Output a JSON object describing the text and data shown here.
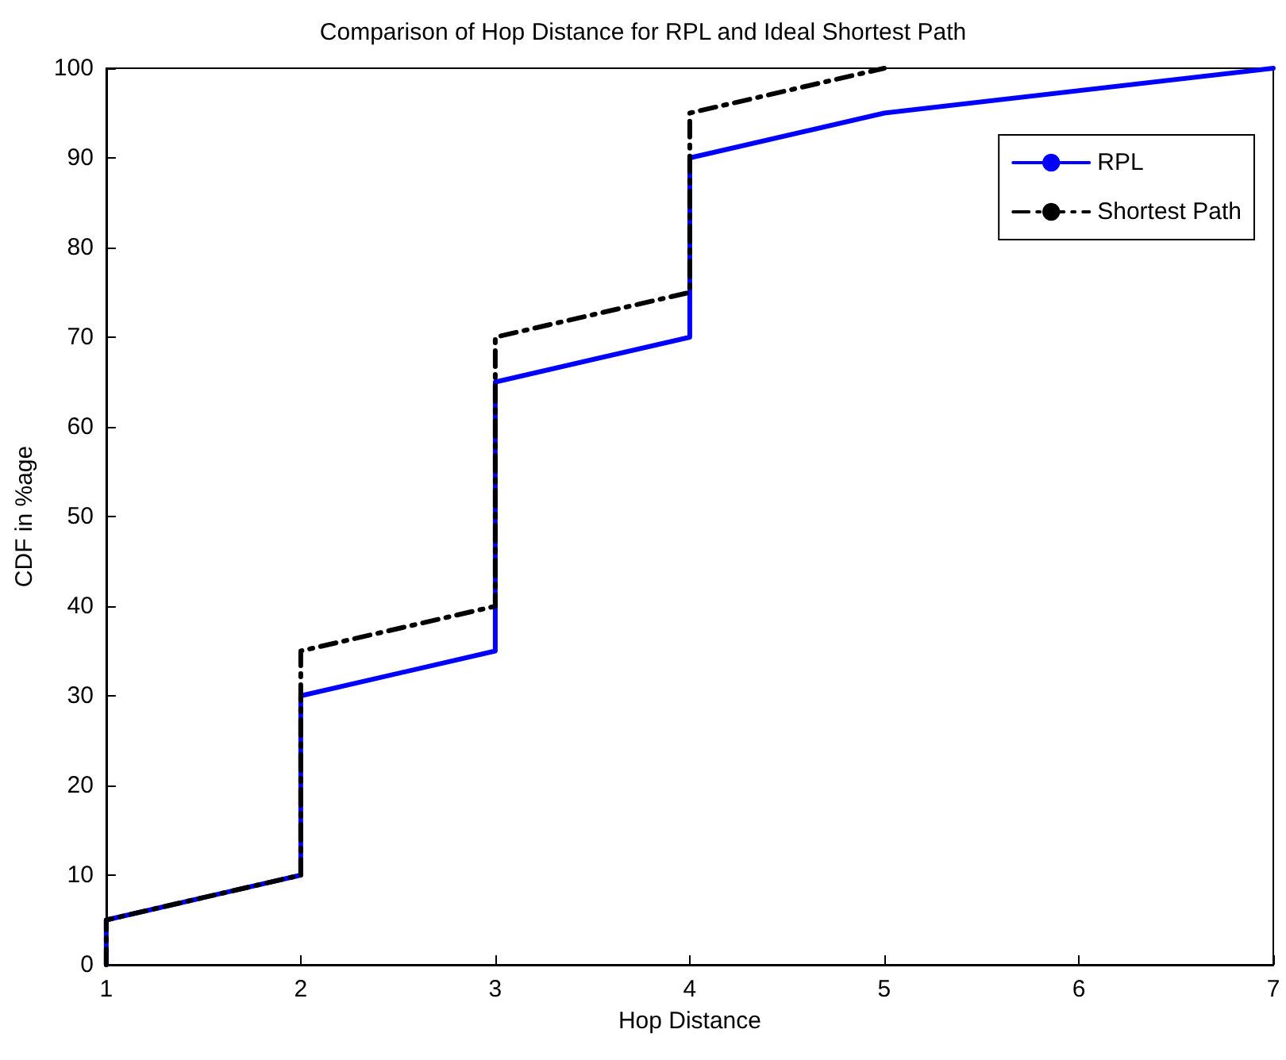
{
  "chart_data": {
    "type": "line",
    "title": "Comparison of Hop Distance for RPL and Ideal Shortest Path",
    "xlabel": "Hop Distance",
    "ylabel": "CDF in %age",
    "series": [
      {
        "name": "RPL",
        "color": "#0000ff",
        "line_style": "solid",
        "x": [
          1,
          1,
          2,
          2,
          3,
          3,
          4,
          4,
          5,
          7
        ],
        "values": [
          0,
          5,
          10,
          30,
          35,
          65,
          70,
          90,
          95,
          100
        ]
      },
      {
        "name": "Shortest Path",
        "color": "#000000",
        "line_style": "dashdot",
        "x": [
          1,
          1,
          2,
          2,
          3,
          3,
          4,
          4,
          5
        ],
        "values": [
          0,
          5,
          10,
          35,
          40,
          70,
          75,
          95,
          100
        ]
      }
    ],
    "xlim": [
      1,
      7
    ],
    "xticks": [
      1,
      2,
      3,
      4,
      5,
      6,
      7
    ],
    "ylim": [
      0,
      100
    ],
    "yticks": [
      0,
      10,
      20,
      30,
      40,
      50,
      60,
      70,
      80,
      90,
      100
    ],
    "grid": false,
    "legend": "top right",
    "marker": "none"
  }
}
